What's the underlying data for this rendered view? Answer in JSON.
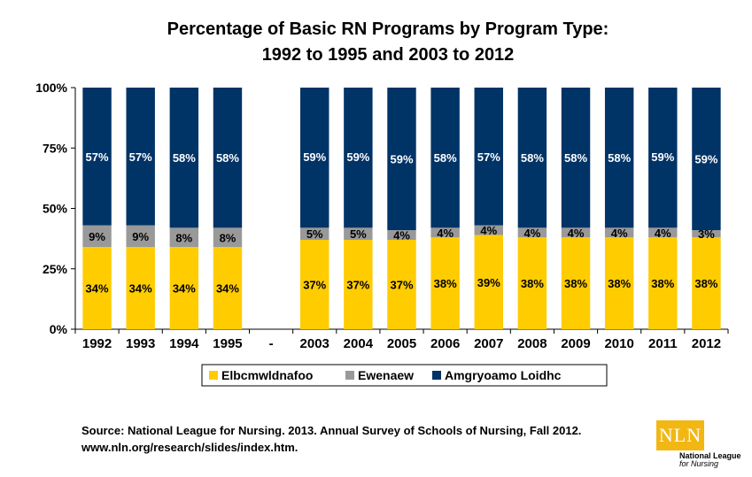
{
  "chart_data": {
    "type": "bar",
    "stacked": true,
    "title_line1": "Percentage of Basic RN Programs by Program Type:",
    "title_line2": "1992 to 1995 and 2003 to 2012",
    "categories": [
      "1992",
      "1993",
      "1994",
      "1995",
      "-",
      "2003",
      "2004",
      "2005",
      "2006",
      "2007",
      "2008",
      "2009",
      "2010",
      "2011",
      "2012"
    ],
    "yticks": [
      "0%",
      "25%",
      "50%",
      "75%",
      "100%"
    ],
    "ylim": [
      0,
      100
    ],
    "series": [
      {
        "name": "Elbcmwldnafoo",
        "color": "#ffcc00",
        "values": [
          34,
          34,
          34,
          34,
          null,
          37,
          37,
          37,
          38,
          39,
          38,
          38,
          38,
          38,
          38
        ],
        "labels": [
          "34%",
          "34%",
          "34%",
          "34%",
          "",
          "37%",
          "37%",
          "37%",
          "38%",
          "39%",
          "38%",
          "38%",
          "38%",
          "38%",
          "38%"
        ]
      },
      {
        "name": "Ewenaew",
        "color": "#999999",
        "values": [
          9,
          9,
          8,
          8,
          null,
          5,
          5,
          4,
          4,
          4,
          4,
          4,
          4,
          4,
          3
        ],
        "labels": [
          "9%",
          "9%",
          "8%",
          "8%",
          "",
          "5%",
          "5%",
          "4%",
          "4%",
          "4%",
          "4%",
          "4%",
          "4%",
          "4%",
          "3%"
        ]
      },
      {
        "name": "Amgryoamo Loidhc",
        "color": "#003366",
        "values": [
          57,
          57,
          58,
          58,
          null,
          59,
          59,
          59,
          58,
          57,
          58,
          58,
          58,
          59,
          59
        ],
        "labels": [
          "57%",
          "57%",
          "58%",
          "58%",
          "",
          "59%",
          "59%",
          "59%",
          "58%",
          "57%",
          "58%",
          "58%",
          "58%",
          "59%",
          "59%"
        ]
      }
    ],
    "legend_position": "bottom"
  },
  "source_line1": "Source: National League for Nursing. 2013. Annual Survey of Schools of Nursing, Fall 2012.",
  "source_line2": "www.nln.org/research/slides/index.htm.",
  "logo": {
    "mark": "NLN",
    "line1": "National League",
    "line2": "for Nursing"
  }
}
